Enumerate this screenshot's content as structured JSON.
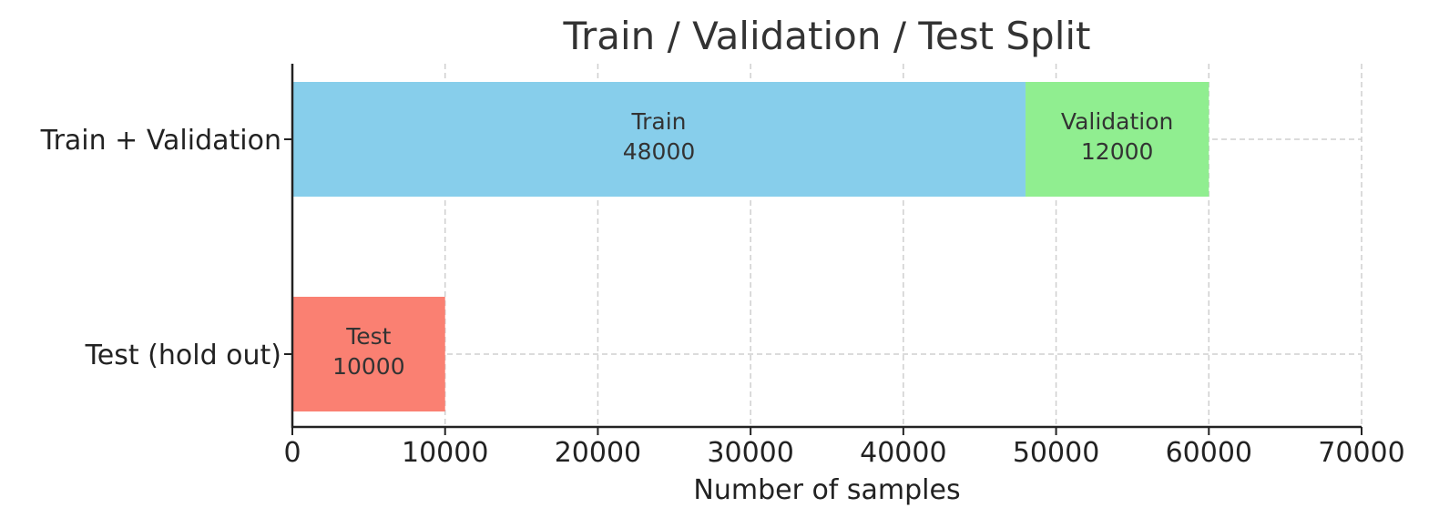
{
  "chart_data": {
    "type": "bar",
    "orientation": "horizontal",
    "stacked": true,
    "title": "Train / Validation / Test Split",
    "xlabel": "Number of samples",
    "ylabel": "",
    "xlim": [
      0,
      70000
    ],
    "xticks": [
      0,
      10000,
      20000,
      30000,
      40000,
      50000,
      60000,
      70000
    ],
    "grid": true,
    "categories": [
      "Train + Validation",
      "Test (hold out)"
    ],
    "segments": [
      {
        "category": "Train + Validation",
        "label": "Train",
        "start": 0,
        "value": 48000,
        "color": "#87CEEB"
      },
      {
        "category": "Train + Validation",
        "label": "Validation",
        "start": 48000,
        "value": 12000,
        "color": "#90EE90"
      },
      {
        "category": "Test (hold out)",
        "label": "Test",
        "start": 0,
        "value": 10000,
        "color": "#FA8072"
      }
    ]
  }
}
